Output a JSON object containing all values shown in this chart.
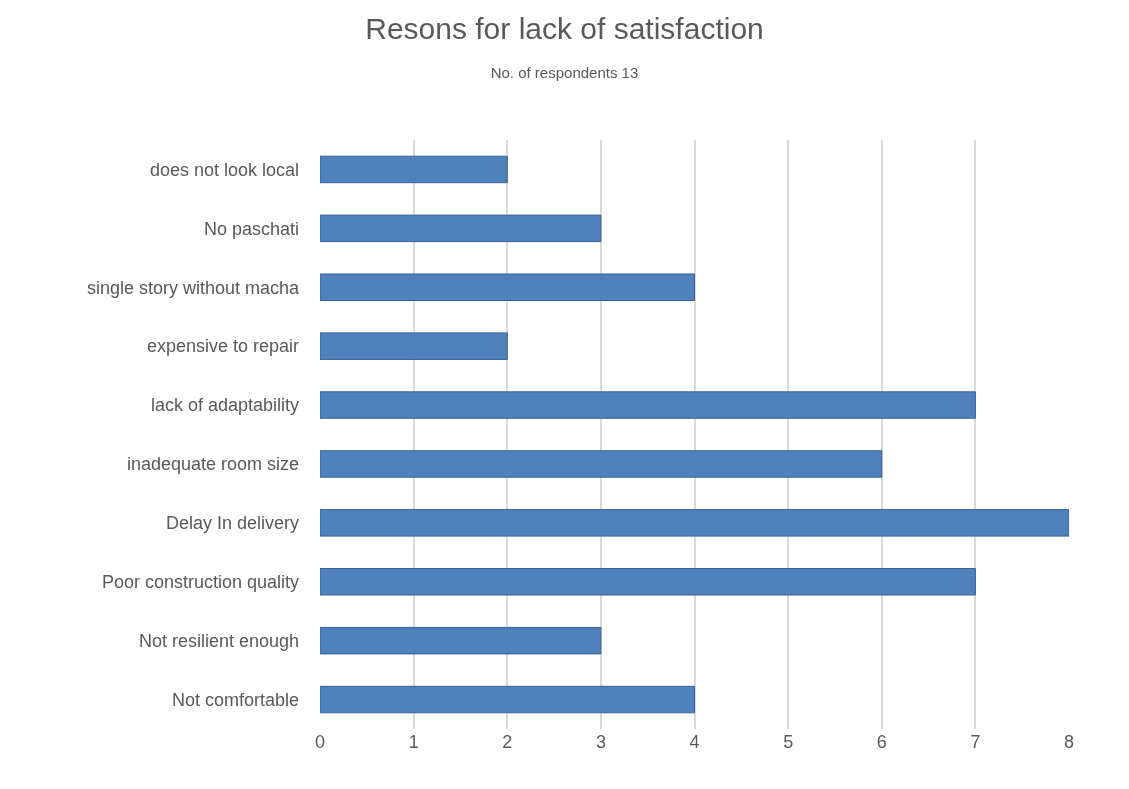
{
  "chart_data": {
    "type": "bar",
    "orientation": "horizontal",
    "title": "Resons for lack of satisfaction",
    "subtitle": "No. of respondents 13",
    "categories": [
      "does not look local",
      "No paschati",
      "single story without macha",
      "expensive to repair",
      "lack of adaptability",
      "inadequate room size",
      "Delay In delivery",
      "Poor construction quality",
      "Not resilient enough",
      "Not comfortable"
    ],
    "values": [
      2,
      3,
      4,
      2,
      7,
      6,
      8,
      7,
      3,
      4
    ],
    "color": "#4f81bd",
    "xlim": [
      0,
      8
    ],
    "xticks": [
      0,
      1,
      2,
      3,
      4,
      5,
      6,
      7,
      8
    ],
    "grid": "x",
    "legend": false
  }
}
